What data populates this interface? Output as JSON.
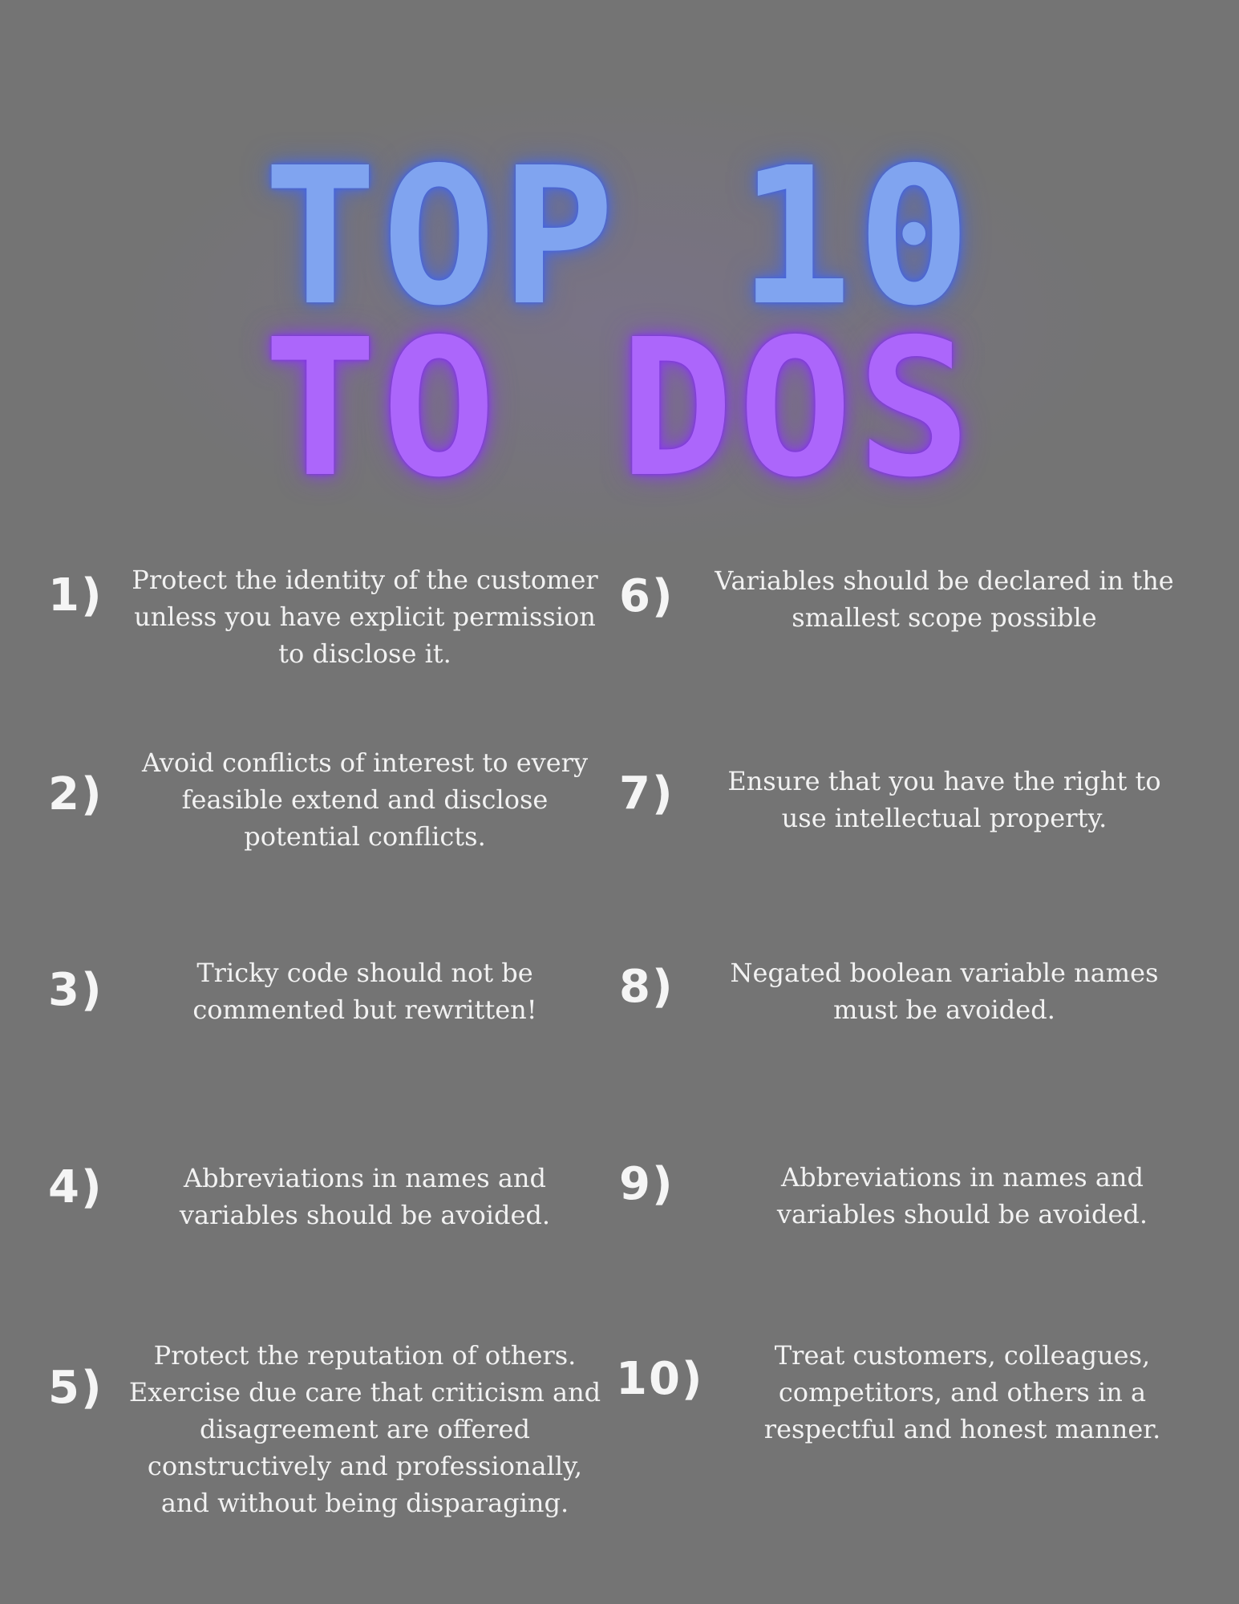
{
  "title": {
    "line1": "TOP 10",
    "line2": "TO DOS"
  },
  "items": [
    {
      "num": "1)",
      "text": "Protect the identity of the customer unless you have explicit permission to disclose it."
    },
    {
      "num": "2)",
      "text": "Avoid conflicts of interest to every feasible extend and disclose potential conflicts."
    },
    {
      "num": "3)",
      "text": "Tricky code should not be commented but rewritten!"
    },
    {
      "num": "4)",
      "text": "Abbreviations in names and variables should be avoided."
    },
    {
      "num": "5)",
      "text": "Protect the reputation of others. Exercise due care that criticism and disagreement are offered constructively and professionally, and without being disparaging."
    },
    {
      "num": "6)",
      "text": "Variables should be declared in the smallest scope possible"
    },
    {
      "num": "7)",
      "text": "Ensure that you have the right to use intellectual property."
    },
    {
      "num": "8)",
      "text": "Negated boolean variable names must be avoided."
    },
    {
      "num": "9)",
      "text": "Abbreviations in names and variables should be avoided."
    },
    {
      "num": "10)",
      "text": "Treat customers, colleagues, competitors, and others in a respectful and honest manner."
    }
  ],
  "colors": {
    "background": "#747474",
    "title_line1": "#80a4f0",
    "title_line2": "#ac66fb",
    "text": "#f2f2f2"
  }
}
